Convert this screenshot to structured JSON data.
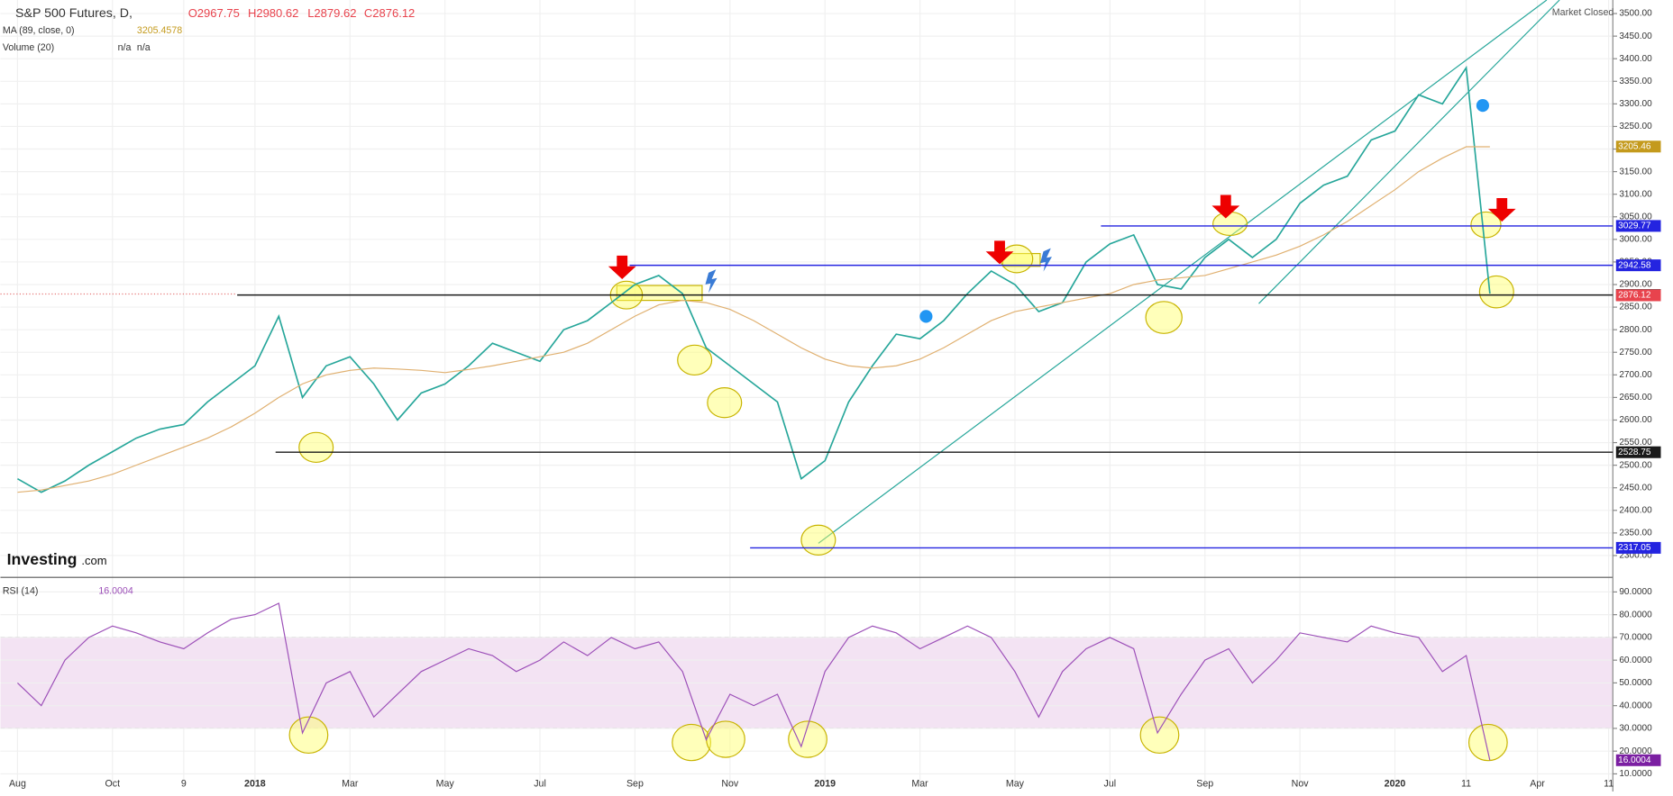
{
  "chart_data": [
    {
      "type": "line",
      "title": "S&P 500 Futures, D,",
      "ohlc_labels": [
        "O2967.75",
        "H2980.62",
        "L2879.62",
        "C2876.12"
      ],
      "ma_value_label": "3205.4578",
      "volume_label": "Volume (20)",
      "volume_values": [
        "n/a",
        "n/a"
      ],
      "status": "Market Closed",
      "brand": "Investing",
      "brand_suffix": ".com",
      "categories": [
        "Aug",
        null,
        null,
        null,
        "Oct",
        null,
        null,
        "9",
        null,
        null,
        "2018",
        null,
        null,
        null,
        "Mar",
        null,
        null,
        null,
        "May",
        null,
        null,
        null,
        "Jul",
        null,
        null,
        null,
        "Sep",
        null,
        null,
        null,
        "Nov",
        null,
        null,
        null,
        "2019",
        null,
        null,
        null,
        "Mar",
        null,
        null,
        null,
        "May",
        null,
        null,
        null,
        "Jul",
        null,
        null,
        null,
        "Sep",
        null,
        null,
        null,
        "Nov",
        null,
        null,
        null,
        "2020",
        null,
        null,
        "11",
        null,
        null,
        "Apr",
        null,
        null,
        "11"
      ],
      "series": [
        {
          "name": "S&P 500 Futures, D,",
          "color": "#26a69a",
          "values": [
            2470,
            2440,
            2465,
            2500,
            2530,
            2560,
            2580,
            2590,
            2640,
            2680,
            2720,
            2830,
            2650,
            2720,
            2740,
            2680,
            2600,
            2660,
            2680,
            2720,
            2770,
            2750,
            2730,
            2800,
            2820,
            2860,
            2900,
            2920,
            2880,
            2760,
            2720,
            2680,
            2640,
            2470,
            2510,
            2640,
            2720,
            2790,
            2780,
            2820,
            2880,
            2930,
            2900,
            2840,
            2860,
            2950,
            2990,
            3010,
            2900,
            2890,
            2960,
            3000,
            2960,
            3000,
            3080,
            3120,
            3140,
            3220,
            3240,
            3320,
            3300,
            3380,
            2880,
            null,
            null,
            null,
            null,
            null
          ]
        },
        {
          "name": "MA (89, close, 0)",
          "color": "#e0b070",
          "values": [
            2440,
            2445,
            2455,
            2465,
            2480,
            2500,
            2520,
            2540,
            2560,
            2585,
            2615,
            2650,
            2680,
            2700,
            2710,
            2715,
            2713,
            2710,
            2705,
            2712,
            2720,
            2730,
            2740,
            2750,
            2770,
            2800,
            2830,
            2855,
            2865,
            2860,
            2845,
            2820,
            2790,
            2760,
            2735,
            2720,
            2715,
            2720,
            2735,
            2760,
            2790,
            2820,
            2840,
            2850,
            2860,
            2870,
            2880,
            2900,
            2910,
            2915,
            2920,
            2935,
            2950,
            2965,
            2985,
            3010,
            3040,
            3075,
            3110,
            3150,
            3180,
            3205,
            3205,
            null,
            null,
            null,
            null,
            null
          ]
        }
      ],
      "levels": [
        {
          "value": 3205.46,
          "label": "3205.46",
          "color": "#c49a1c"
        },
        {
          "value": 3029.77,
          "label": "3029.77",
          "color": "#2424e0"
        },
        {
          "value": 2942.58,
          "label": "2942.58",
          "color": "#2424e0"
        },
        {
          "value": 2876.8,
          "label": "2876.80",
          "color": "#1a1a1a"
        },
        {
          "value": 2876.12,
          "label": "2876.12",
          "color": "#e8434d"
        },
        {
          "value": 2528.75,
          "label": "2528.75",
          "color": "#1a1a1a"
        },
        {
          "value": 2317.05,
          "label": "2317.05",
          "color": "#2424e0"
        }
      ],
      "ylim": [
        2254,
        3530
      ],
      "yticks": [
        {
          "value": 2300,
          "label": "2300.00"
        },
        {
          "value": 2350,
          "label": "2350.00"
        },
        {
          "value": 2400,
          "label": "2400.00"
        },
        {
          "value": 2450,
          "label": "2450.00"
        },
        {
          "value": 2500,
          "label": "2500.00"
        },
        {
          "value": 2550,
          "label": "2550.00"
        },
        {
          "value": 2600,
          "label": "2600.00"
        },
        {
          "value": 2650,
          "label": "2650.00"
        },
        {
          "value": 2700,
          "label": "2700.00"
        },
        {
          "value": 2750,
          "label": "2750.00"
        },
        {
          "value": 2800,
          "label": "2800.00"
        },
        {
          "value": 2850,
          "label": "2850.00"
        },
        {
          "value": 2900,
          "label": "2900.00"
        },
        {
          "value": 2950,
          "label": "2950.00"
        },
        {
          "value": 3000,
          "label": "3000.00"
        },
        {
          "value": 3050,
          "label": "3050.00"
        },
        {
          "value": 3100,
          "label": "3100.00"
        },
        {
          "value": 3150,
          "label": "3150.00"
        },
        {
          "value": 3200,
          "label": "3200.00"
        },
        {
          "value": 3250,
          "label": "3250.00"
        },
        {
          "value": 3300,
          "label": "3300.00"
        },
        {
          "value": 3350,
          "label": "3350.00"
        },
        {
          "value": 3400,
          "label": "3400.00"
        },
        {
          "value": 3450,
          "label": "3450.00"
        },
        {
          "value": 3500,
          "label": "3500.00"
        }
      ],
      "grid": true
    },
    {
      "type": "line",
      "series": [
        {
          "name": "RSI (14)",
          "color": "#9c4fb8",
          "values": [
            50,
            40,
            60,
            70,
            75,
            72,
            68,
            65,
            72,
            78,
            80,
            85,
            28,
            50,
            55,
            35,
            45,
            55,
            60,
            65,
            62,
            55,
            60,
            68,
            62,
            70,
            65,
            68,
            55,
            25,
            45,
            40,
            45,
            22,
            55,
            70,
            75,
            72,
            65,
            70,
            75,
            70,
            55,
            35,
            55,
            65,
            70,
            65,
            28,
            45,
            60,
            65,
            50,
            60,
            72,
            70,
            68,
            75,
            72,
            70,
            55,
            62,
            16,
            null,
            null,
            null,
            null,
            null
          ]
        }
      ],
      "value_label": {
        "value": 16.0004,
        "label": "16.0004"
      },
      "band": [
        30,
        70
      ],
      "ylim": [
        6,
        95
      ],
      "yticks": [
        {
          "value": 10,
          "label": "10.0000"
        },
        {
          "value": 20,
          "label": "20.0000"
        },
        {
          "value": 30,
          "label": "30.0000"
        },
        {
          "value": 40,
          "label": "40.0000"
        },
        {
          "value": 50,
          "label": "50.0000"
        },
        {
          "value": 60,
          "label": "60.0000"
        },
        {
          "value": 70,
          "label": "70.0000"
        },
        {
          "value": 80,
          "label": "80.0000"
        },
        {
          "value": 90,
          "label": "90.0000"
        }
      ],
      "grid": true
    }
  ]
}
